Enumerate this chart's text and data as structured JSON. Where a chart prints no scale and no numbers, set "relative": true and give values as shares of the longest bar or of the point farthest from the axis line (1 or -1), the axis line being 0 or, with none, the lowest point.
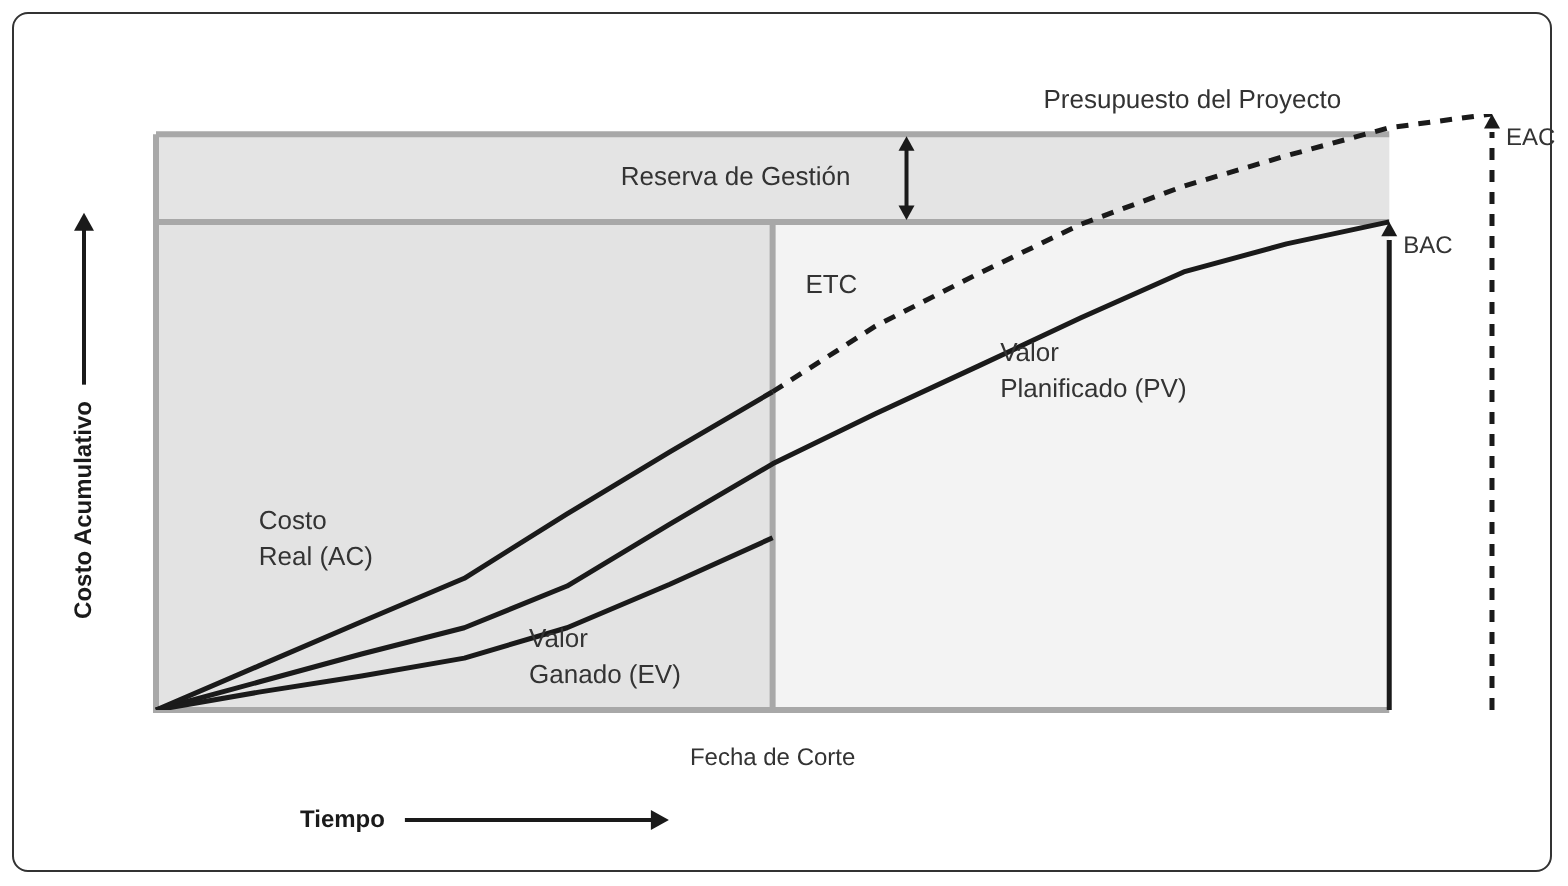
{
  "chart_data": {
    "type": "line",
    "relative": true,
    "xlabel": "Tiempo",
    "ylabel": "Costo Acumulativo",
    "categories": [
      null,
      null,
      null,
      null,
      null,
      null,
      null,
      null,
      null,
      null,
      null,
      null,
      null,
      null
    ],
    "series": [
      {
        "name": "Costo Real (AC)",
        "color": "#1a1a1a",
        "values": [
          0,
          0.074,
          0.148,
          0.221,
          0.329,
          0.433,
          0.534,
          null,
          null,
          null,
          null,
          null,
          null,
          null
        ]
      },
      {
        "name": "Valor Ganado (EV)",
        "color": "#1a1a1a",
        "values": [
          0,
          0.03,
          0.057,
          0.087,
          0.138,
          0.211,
          0.289,
          null,
          null,
          null,
          null,
          null,
          null,
          null
        ]
      },
      {
        "name": "Valor Planificado (PV)",
        "color": "#1a1a1a",
        "values": [
          0,
          0.047,
          0.094,
          0.138,
          0.208,
          0.312,
          0.413,
          0.497,
          0.577,
          0.658,
          0.735,
          0.782,
          0.819,
          null
        ]
      },
      {
        "name": "ETC",
        "color": "#1a1a1a",
        "line_style": "dashed",
        "values": [
          null,
          null,
          null,
          null,
          null,
          null,
          0.534,
          0.644,
          0.732,
          0.815,
          0.879,
          0.93,
          0.977,
          1
        ]
      }
    ],
    "bands": [
      {
        "axis": "y",
        "from": 0.819,
        "to": 0.966,
        "label": "Reserva de Gestión",
        "color": "#e4e4e4"
      }
    ],
    "ref_lines": [
      {
        "axis": "y",
        "value": 0.966,
        "label": "Presupuesto del Proyecto",
        "color": "#a8a8a8"
      },
      {
        "axis": "y",
        "value": 0.819,
        "color": "#a8a8a8"
      }
    ],
    "annotations": [
      "Fecha de Corte",
      "BAC",
      "EAC"
    ],
    "legend": false,
    "marker": "none",
    "line_style": "solid"
  }
}
